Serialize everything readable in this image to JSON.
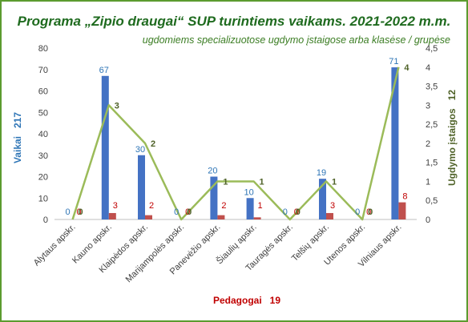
{
  "chart_data": {
    "type": "bar",
    "title": "Programa „Zipio draugai“ SUP turintiems vaikams. 2021-2022 m.m.",
    "subtitle": "ugdomiems specializuotose ugdymo įstaigose arba klasėse / grupėse",
    "categories": [
      "Alytaus apskr.",
      "Kauno apskr.",
      "Klaipėdos apskr.",
      "Marijampolės apskr.",
      "Panevėžio apskr.",
      "Šiaulių apskr.",
      "Tauragės apskr.",
      "Telšių apskr.",
      "Utenos apskr.",
      "Vilniaus apskr."
    ],
    "series": [
      {
        "name": "Vaikai",
        "axis": "left",
        "kind": "bar",
        "color": "#4472C4",
        "label_color": "#2E75B6",
        "values": [
          0,
          67,
          30,
          0,
          20,
          10,
          0,
          19,
          0,
          71
        ]
      },
      {
        "name": "Pedagogai",
        "axis": "left",
        "kind": "bar",
        "color": "#C0504D",
        "label_color": "#C00000",
        "values": [
          0,
          3,
          2,
          0,
          2,
          1,
          0,
          3,
          0,
          8
        ]
      },
      {
        "name": "Ugdymo įstaigos",
        "axis": "right",
        "kind": "line",
        "color": "#9BBB59",
        "label_color": "#4F6228",
        "values": [
          0,
          3,
          2,
          0,
          1,
          1,
          0,
          1,
          0,
          4
        ]
      }
    ],
    "left_axis": {
      "ylim": [
        0,
        80
      ],
      "ticks": [
        "0",
        "10",
        "20",
        "30",
        "40",
        "50",
        "60",
        "70",
        "80"
      ]
    },
    "right_axis": {
      "ylim": [
        0,
        4.5
      ],
      "ticks": [
        "0",
        "0,5",
        "1",
        "1,5",
        "2",
        "2,5",
        "3",
        "3,5",
        "4",
        "4,5"
      ]
    },
    "ylabel_left": "Vaikai   217",
    "ylabel_right": "Ugdymo įstaigos   12",
    "xlabel": "Pedagogai   19",
    "grid": false,
    "colors": {
      "border": "#5B9B2F",
      "title": "#1F6B1F",
      "subtitle": "#3B7D23",
      "left_label": "#2E75B6",
      "right_label": "#4F6228",
      "x_label": "#C00000"
    }
  }
}
